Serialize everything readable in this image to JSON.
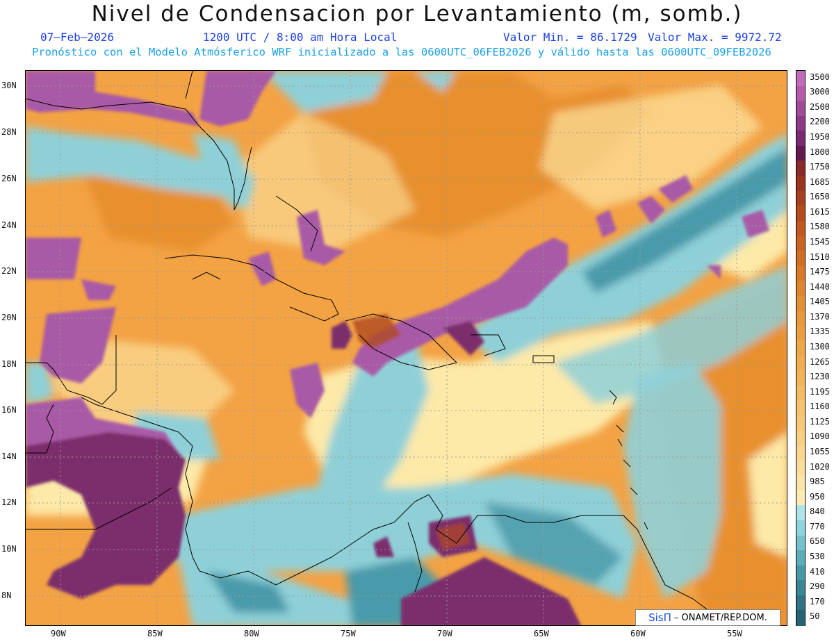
{
  "header": {
    "title": "Nivel de Condensacion por Levantamiento (m, somb.)",
    "date": "07–Feb–2026",
    "time": "1200 UTC / 8:00 am Hora Local",
    "valmin": "Valor Min. = 86.1729",
    "valmax": "Valor Max. = 9972.72",
    "forecast": "Pronóstico con el Modelo Atmósferico WRF inicializado a las 0600UTC_06FEB2026 y válido hasta las  0600UTC_09FEB2026"
  },
  "axes": {
    "lat_labels": [
      "30N",
      "28N",
      "26N",
      "24N",
      "22N",
      "20N",
      "18N",
      "16N",
      "14N",
      "12N",
      "10N",
      "8N"
    ],
    "lon_labels": [
      "90W",
      "85W",
      "80W",
      "75W",
      "70W",
      "65W",
      "60W",
      "55W"
    ]
  },
  "colorbar": {
    "labels": [
      "3500",
      "3000",
      "2500",
      "2200",
      "1950",
      "1800",
      "1750",
      "1685",
      "1650",
      "1615",
      "1580",
      "1545",
      "1510",
      "1475",
      "1440",
      "1405",
      "1370",
      "1335",
      "1300",
      "1265",
      "1230",
      "1195",
      "1160",
      "1125",
      "1090",
      "1055",
      "1020",
      "985",
      "950",
      "840",
      "770",
      "650",
      "530",
      "410",
      "290",
      "170",
      "50"
    ],
    "colors": [
      "#c26bb8",
      "#b85aaa",
      "#a34a98",
      "#8e3a86",
      "#7a2a70",
      "#63184f",
      "#8a2a2a",
      "#9b3520",
      "#a8401e",
      "#b54c1e",
      "#c0581f",
      "#c96422",
      "#d06e24",
      "#d87a28",
      "#de852d",
      "#e38f33",
      "#e8993a",
      "#ec9f40",
      "#efa848",
      "#f1ae50",
      "#f3b458",
      "#f5bb62",
      "#f6c26c",
      "#f8c878",
      "#f9cf84",
      "#fad690",
      "#fbdd9c",
      "#fce4a8",
      "#fdeab4",
      "#aee4ea",
      "#8fd4dc",
      "#73c2cc",
      "#5aaebb",
      "#4799a8",
      "#3a8596",
      "#2f7385",
      "#256373"
    ]
  },
  "map": {
    "colors": {
      "ocean_orange": "#f3a244",
      "dark_orange": "#e8902f",
      "pale_yellow": "#fde9a8",
      "cyan": "#8fd0d8",
      "teal": "#4a9aaa",
      "purple": "#a95aa6",
      "dark_purple": "#7b2e6c",
      "brown": "#b04a22"
    }
  },
  "credit": {
    "logo": "SisΠ",
    "text": "– ONAMET/REP.DOM."
  }
}
